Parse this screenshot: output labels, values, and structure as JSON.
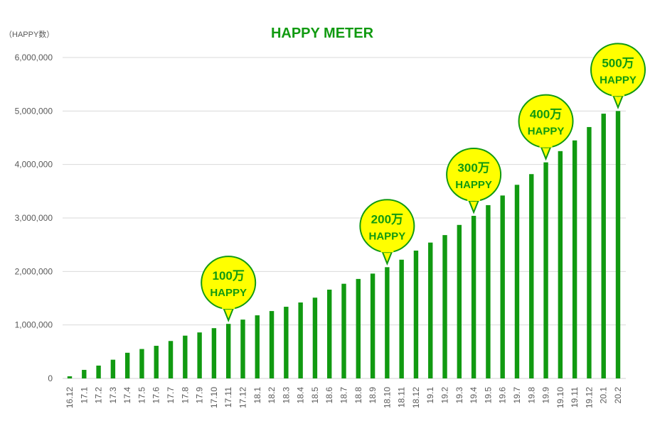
{
  "chart_data": {
    "type": "bar",
    "title": "HAPPY METER",
    "ylabel": "（HAPPY数）",
    "xlabel": "",
    "ylim": [
      0,
      6000000
    ],
    "yticks": [
      0,
      1000000,
      2000000,
      3000000,
      4000000,
      5000000,
      6000000
    ],
    "ytick_labels": [
      "0",
      "1,000,000",
      "2,000,000",
      "3,000,000",
      "4,000,000",
      "5,000,000",
      "6,000,000"
    ],
    "grid": true,
    "bar_color": "#119a11",
    "categories": [
      "16.12",
      "17.1",
      "17.2",
      "17.3",
      "17.4",
      "17.5",
      "17.6",
      "17.7",
      "17.8",
      "17.9",
      "17.10",
      "17.11",
      "17.12",
      "18.1",
      "18.2",
      "18.3",
      "18.4",
      "18.5",
      "18.6",
      "18.7",
      "18.8",
      "18.9",
      "18.10",
      "18.11",
      "18.12",
      "19.1",
      "19.2",
      "19.3",
      "19.4",
      "19.5",
      "19.6",
      "19.7",
      "19.8",
      "19.9",
      "19.10",
      "19.11",
      "19.12",
      "20.1",
      "20.2"
    ],
    "values": [
      40000,
      160000,
      240000,
      350000,
      480000,
      550000,
      610000,
      700000,
      800000,
      860000,
      940000,
      1020000,
      1100000,
      1180000,
      1260000,
      1340000,
      1420000,
      1510000,
      1660000,
      1770000,
      1860000,
      1960000,
      2080000,
      2220000,
      2390000,
      2540000,
      2680000,
      2870000,
      3040000,
      3240000,
      3420000,
      3620000,
      3820000,
      4040000,
      4250000,
      4450000,
      4700000,
      4950000,
      5000000
    ],
    "annotations": [
      {
        "category": "17.11",
        "line1": "100万",
        "line2": "HAPPY"
      },
      {
        "category": "18.10",
        "line1": "200万",
        "line2": "HAPPY"
      },
      {
        "category": "19.4",
        "line1": "300万",
        "line2": "HAPPY"
      },
      {
        "category": "19.9",
        "line1": "400万",
        "line2": "HAPPY"
      },
      {
        "category": "20.2",
        "line1": "500万",
        "line2": "HAPPY"
      }
    ],
    "annotation_fill": "#ffff00",
    "annotation_stroke": "#119a11"
  }
}
